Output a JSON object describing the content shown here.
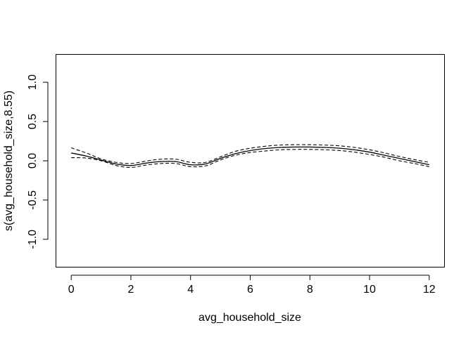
{
  "chart_data": {
    "type": "line",
    "title": "",
    "xlabel": "avg_household_size",
    "ylabel": "s(avg_household_size,8.55)",
    "xlim": [
      -0.5,
      12.5
    ],
    "ylim": [
      -1.35,
      1.35
    ],
    "x_ticks": [
      0,
      2,
      4,
      6,
      8,
      10,
      12
    ],
    "y_ticks": [
      -1.0,
      -0.5,
      0.0,
      0.5,
      1.0
    ],
    "x_tick_labels": [
      "0",
      "2",
      "4",
      "6",
      "8",
      "10",
      "12"
    ],
    "y_tick_labels": [
      "-1.0",
      "-0.5",
      "0.0",
      "0.5",
      "1.0"
    ],
    "grid": false,
    "legend": "none",
    "x": [
      0,
      0.5,
      1,
      1.5,
      2,
      2.5,
      3,
      3.5,
      4,
      4.5,
      5,
      5.5,
      6,
      6.5,
      7,
      7.5,
      8,
      8.5,
      9,
      9.5,
      10,
      10.5,
      11,
      11.5,
      12
    ],
    "series": [
      {
        "style": "solid",
        "values": [
          0.1,
          0.06,
          0.01,
          -0.04,
          -0.06,
          -0.03,
          -0.01,
          -0.01,
          -0.05,
          -0.04,
          0.03,
          0.09,
          0.13,
          0.155,
          0.17,
          0.175,
          0.175,
          0.17,
          0.16,
          0.14,
          0.11,
          0.07,
          0.03,
          -0.01,
          -0.05
        ]
      },
      {
        "style": "dashed",
        "values": [
          0.165,
          0.1,
          0.025,
          -0.02,
          -0.035,
          -0.005,
          0.02,
          0.02,
          -0.02,
          -0.02,
          0.05,
          0.12,
          0.16,
          0.185,
          0.2,
          0.205,
          0.205,
          0.2,
          0.19,
          0.17,
          0.14,
          0.1,
          0.055,
          0.015,
          -0.02
        ]
      },
      {
        "style": "dashed",
        "values": [
          0.04,
          0.035,
          0.0,
          -0.06,
          -0.085,
          -0.055,
          -0.035,
          -0.035,
          -0.075,
          -0.065,
          0.01,
          0.07,
          0.105,
          0.125,
          0.14,
          0.145,
          0.145,
          0.14,
          0.13,
          0.11,
          0.08,
          0.045,
          0.0,
          -0.035,
          -0.075
        ]
      }
    ]
  }
}
